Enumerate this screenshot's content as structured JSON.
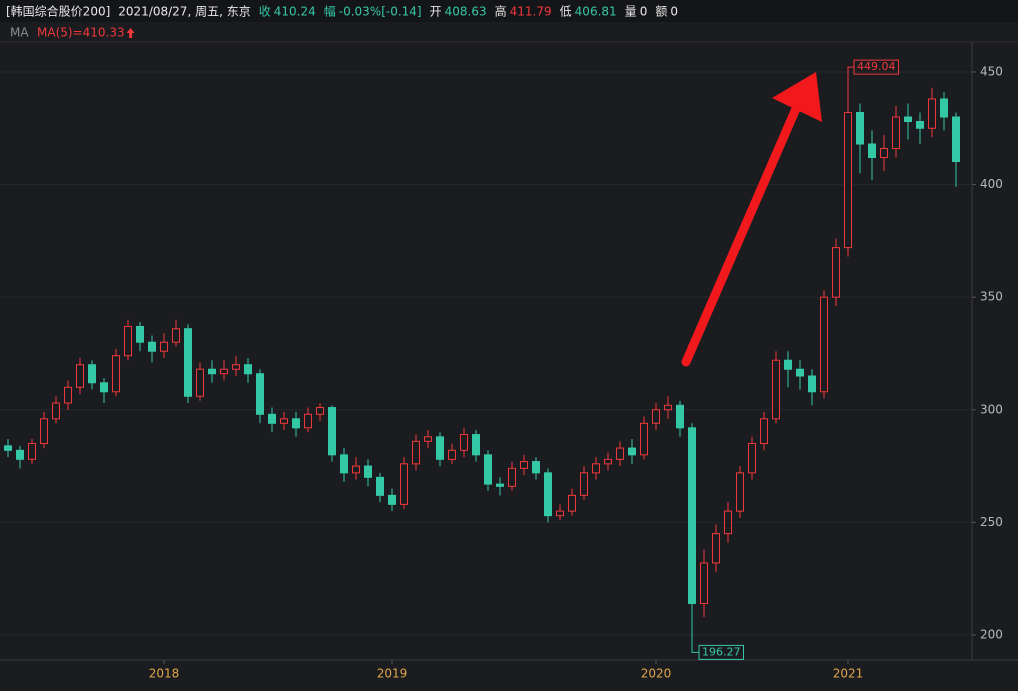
{
  "chart_data": {
    "type": "candlestick",
    "title": "[韩国综合股价200]",
    "date": "2021/08/27, 周五, 东京",
    "quote": [
      {
        "label": "收",
        "value": "410.24",
        "label_color": "#35c8a6",
        "color": "#35c8a6"
      },
      {
        "label": "幅",
        "value": "-0.03%[-0.14]",
        "label_color": "#35c8a6",
        "color": "#35c8a6"
      },
      {
        "label": "开",
        "value": "408.63",
        "label_color": "#e8e8e8",
        "color": "#35c8a6"
      },
      {
        "label": "高",
        "value": "411.79",
        "label_color": "#e8e8e8",
        "color": "#f0383c"
      },
      {
        "label": "低",
        "value": "406.81",
        "label_color": "#e8e8e8",
        "color": "#35c8a6"
      },
      {
        "label": "量",
        "value": "0",
        "label_color": "#e8e8e8",
        "color": "#e8e8e8"
      },
      {
        "label": "额",
        "value": "0",
        "label_color": "#e8e8e8",
        "color": "#e8e8e8"
      }
    ],
    "indicator": "MA",
    "ma_label": "MA(5)=410.33",
    "up_color": "#f0383c",
    "down_color": "#35c8a6",
    "categories": [
      null,
      null,
      null,
      null,
      null,
      null,
      null,
      null,
      null,
      null,
      null,
      null,
      null,
      "2018",
      null,
      null,
      null,
      null,
      null,
      null,
      null,
      null,
      null,
      null,
      null,
      null,
      null,
      null,
      null,
      null,
      null,
      null,
      "2019",
      null,
      null,
      null,
      null,
      null,
      null,
      null,
      null,
      null,
      null,
      null,
      null,
      null,
      null,
      null,
      null,
      null,
      null,
      null,
      null,
      null,
      "2020",
      null,
      null,
      null,
      null,
      null,
      null,
      null,
      null,
      null,
      null,
      null,
      null,
      null,
      null,
      null,
      "2021",
      null,
      null,
      null,
      null,
      null,
      null,
      null,
      null,
      null
    ],
    "open": [
      284,
      282,
      278,
      285,
      296,
      303,
      310,
      320,
      312,
      308,
      324,
      337,
      330,
      326,
      330,
      336,
      306,
      318,
      316,
      318,
      320,
      316,
      298,
      294,
      296,
      292,
      298,
      301,
      280,
      272,
      275,
      270,
      262,
      258,
      276,
      286,
      288,
      278,
      282,
      289,
      280,
      267,
      266,
      274,
      277,
      272,
      253,
      255,
      262,
      272,
      276,
      278,
      283,
      280,
      294,
      300,
      302,
      292,
      214,
      232,
      245,
      255,
      272,
      285,
      296,
      322,
      318,
      315,
      308,
      350,
      372,
      432,
      418,
      412,
      416,
      430,
      428,
      425,
      438,
      430
    ],
    "high": [
      287,
      284,
      287,
      299,
      306,
      313,
      323,
      322,
      314,
      327,
      340,
      339,
      333,
      334,
      340,
      338,
      321,
      322,
      322,
      324,
      323,
      318,
      301,
      299,
      299,
      301,
      303,
      302,
      283,
      279,
      278,
      272,
      265,
      279,
      289,
      291,
      290,
      285,
      292,
      291,
      282,
      270,
      277,
      280,
      279,
      274,
      258,
      265,
      275,
      279,
      281,
      286,
      287,
      297,
      303,
      306,
      304,
      294,
      238,
      249,
      259,
      275,
      288,
      299,
      326,
      326,
      322,
      318,
      353,
      376,
      449.04,
      436,
      424,
      422,
      435,
      436,
      432,
      443,
      441,
      432
    ],
    "low": [
      279,
      274,
      276,
      283,
      294,
      300,
      307,
      309,
      303,
      306,
      322,
      326,
      321,
      323,
      328,
      303,
      304,
      312,
      313,
      315,
      312,
      294,
      290,
      291,
      288,
      290,
      295,
      277,
      268,
      269,
      266,
      259,
      255,
      256,
      273,
      283,
      275,
      276,
      279,
      277,
      264,
      262,
      264,
      271,
      269,
      250,
      251,
      253,
      260,
      269,
      273,
      275,
      276,
      278,
      291,
      296,
      288,
      196.27,
      208,
      228,
      241,
      252,
      269,
      282,
      294,
      310,
      309,
      302,
      305,
      346,
      368,
      405,
      402,
      406,
      412,
      420,
      418,
      421,
      424,
      399
    ],
    "close": [
      282,
      278,
      285,
      296,
      303,
      310,
      320,
      312,
      308,
      324,
      337,
      330,
      326,
      330,
      336,
      306,
      318,
      316,
      318,
      320,
      316,
      298,
      294,
      296,
      292,
      298,
      301,
      280,
      272,
      275,
      270,
      262,
      258,
      276,
      286,
      288,
      278,
      282,
      289,
      280,
      267,
      266,
      274,
      277,
      272,
      253,
      255,
      262,
      272,
      276,
      278,
      283,
      280,
      294,
      300,
      302,
      292,
      214,
      232,
      245,
      255,
      272,
      285,
      296,
      322,
      318,
      315,
      308,
      350,
      372,
      432,
      418,
      412,
      416,
      430,
      428,
      425,
      438,
      430,
      410.24
    ],
    "ylim": [
      188.9,
      463.3
    ],
    "yticks": [
      200,
      250,
      300,
      350,
      400,
      450
    ],
    "grid": true
  }
}
